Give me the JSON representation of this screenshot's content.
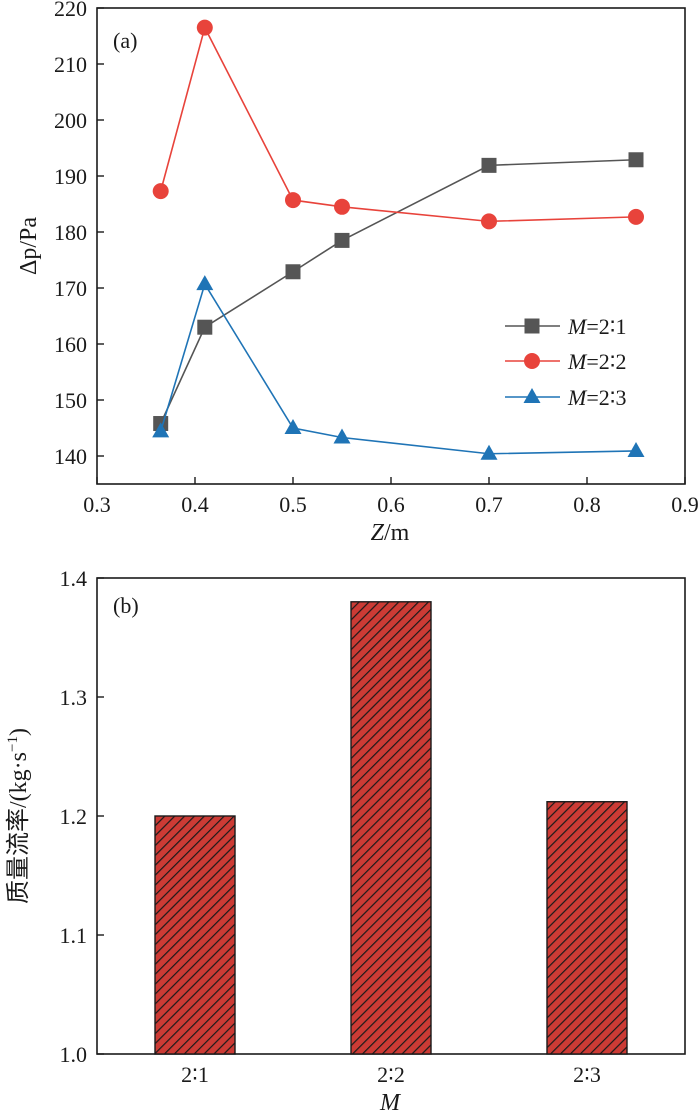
{
  "chart_data": [
    {
      "panel": "(a)",
      "type": "line",
      "xlabel_var": "Z",
      "xlabel_unit": "/m",
      "ylabel_var": "Δp",
      "ylabel_unit": "/Pa",
      "xlim": [
        0.3,
        0.9
      ],
      "ylim": [
        135,
        220
      ],
      "xticks": [
        0.3,
        0.4,
        0.5,
        0.6,
        0.7,
        0.8,
        0.9
      ],
      "xtick_labels": [
        "0.3",
        "0.4",
        "0.5",
        "0.6",
        "0.7",
        "0.8",
        "0.9"
      ],
      "yticks": [
        140,
        150,
        160,
        170,
        180,
        190,
        200,
        210,
        220
      ],
      "ytick_labels": [
        "140",
        "150",
        "160",
        "170",
        "180",
        "190",
        "200",
        "210",
        "220"
      ],
      "x": [
        0.365,
        0.41,
        0.5,
        0.55,
        0.7,
        0.85
      ],
      "legend_position": "right",
      "series": [
        {
          "name_var": "M",
          "name_rest": "=2∶1",
          "marker": "square",
          "color": "#555555",
          "values": [
            145.8,
            163.0,
            172.9,
            178.5,
            191.9,
            192.9
          ]
        },
        {
          "name_var": "M",
          "name_rest": "=2∶2",
          "marker": "circle",
          "color": "#e8433b",
          "values": [
            187.3,
            216.5,
            185.7,
            184.5,
            181.9,
            182.7
          ]
        },
        {
          "name_var": "M",
          "name_rest": "=2∶3",
          "marker": "triangle",
          "color": "#1f74b6",
          "values": [
            144.4,
            170.7,
            145.0,
            143.3,
            140.4,
            140.9
          ]
        }
      ]
    },
    {
      "panel": "(b)",
      "type": "bar",
      "xlabel_var": "M",
      "ylabel": "质量流率/(kg·s",
      "ylabel_sup": "−1",
      "ylabel_close": ")",
      "ylim": [
        1.0,
        1.4
      ],
      "yticks": [
        1.0,
        1.1,
        1.2,
        1.3,
        1.4
      ],
      "ytick_labels": [
        "1.0",
        "1.1",
        "1.2",
        "1.3",
        "1.4"
      ],
      "categories": [
        "2∶1",
        "2∶2",
        "2∶3"
      ],
      "values": [
        1.2,
        1.38,
        1.212
      ],
      "bar_color": "#cc3b35",
      "hatch_color": "#1a1a1a"
    }
  ]
}
